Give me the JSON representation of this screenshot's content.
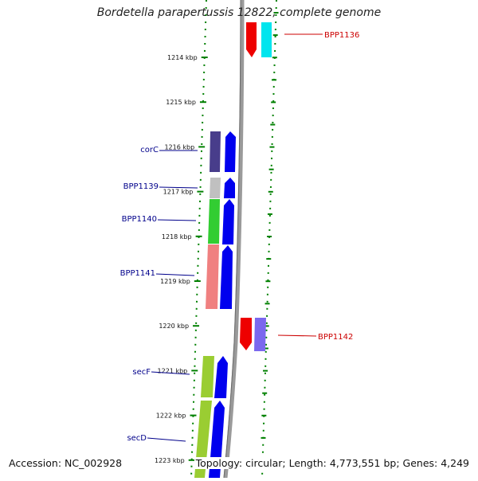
{
  "title": "Bordetella parapertussis 12822, complete genome",
  "accession_text": "Accession: NC_002928",
  "topology_text": "Topology: circular; Length: 4,773,551 bp; Genes: 4,249",
  "ticks": [
    "1214 kbp",
    "1215 kbp",
    "1216 kbp",
    "1217 kbp",
    "1218 kbp",
    "1219 kbp",
    "1220 kbp",
    "1221 kbp",
    "1222 kbp",
    "1223 kbp"
  ],
  "colors": {
    "backbone": "#808080",
    "tick_green": "#008000",
    "label_left": "#00008b",
    "label_right": "#cc0000",
    "cds_blue": "#0000ee",
    "red": "#ee0000",
    "cyan": "#00e5ee",
    "pink": "#f08080",
    "darkslate": "#483d8b",
    "lightgray": "#c0c0c0",
    "limegreen": "#32cd32",
    "yellowgreen": "#9acd32",
    "mediumpurple": "#7b68ee"
  },
  "gene_labels": {
    "BPP1136": "BPP1136",
    "corC": "corC",
    "BPP1139": "BPP1139",
    "BPP1140": "BPP1140",
    "BPP1141": "BPP1141",
    "BPP1142": "BPP1142",
    "secF": "secF",
    "secD": "secD"
  }
}
